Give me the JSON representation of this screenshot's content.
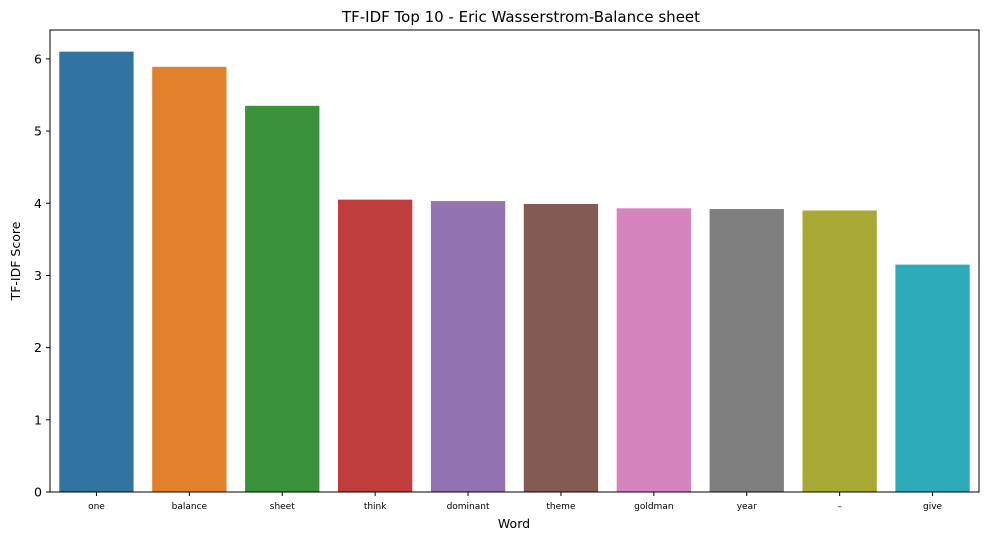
{
  "chart_data": {
    "type": "bar",
    "title": "TF-IDF Top 10 - Eric Wasserstrom-Balance sheet",
    "xlabel": "Word",
    "ylabel": "TF-IDF Score",
    "categories": [
      "one",
      "balance",
      "sheet",
      "think",
      "dominant",
      "theme",
      "goldman",
      "year",
      "–",
      "give"
    ],
    "values": [
      6.1,
      5.89,
      5.35,
      4.05,
      4.03,
      3.99,
      3.93,
      3.92,
      3.9,
      3.15
    ],
    "colors": [
      "#3274a1",
      "#e1812c",
      "#3a923a",
      "#c03d3e",
      "#9372b2",
      "#845b53",
      "#d684bd",
      "#7f7f7f",
      "#a9aa35",
      "#2eabb8"
    ],
    "ylim": [
      0,
      6.4
    ],
    "yticks": [
      0,
      1,
      2,
      3,
      4,
      5,
      6
    ],
    "grid": false,
    "legend": "none"
  }
}
